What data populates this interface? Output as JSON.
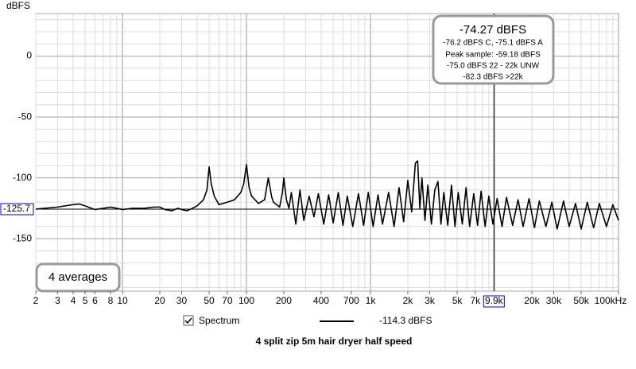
{
  "chart_data": {
    "type": "line",
    "title": "4 split zip 5m hair dryer half speed",
    "y_label": "dBFS",
    "xscale": "log",
    "xlim": [
      2,
      100000
    ],
    "ylim": [
      -193,
      35
    ],
    "xticks": [
      2,
      3,
      4,
      5,
      6,
      8,
      10,
      20,
      30,
      50,
      70,
      100,
      200,
      400,
      700,
      {
        "value": 1000,
        "label": "1k"
      },
      {
        "value": 2000,
        "label": "2k"
      },
      {
        "value": 3000,
        "label": "3k"
      },
      {
        "value": 5000,
        "label": "5k"
      },
      {
        "value": 7000,
        "label": "7k"
      },
      {
        "value": 20000,
        "label": "20k"
      },
      {
        "value": 30000,
        "label": "30k"
      },
      {
        "value": 50000,
        "label": "50k"
      },
      {
        "value": 100000,
        "label": "100kHz"
      }
    ],
    "yticks": [
      0,
      -50,
      -100,
      -150
    ],
    "x_grid": [
      2,
      3,
      4,
      5,
      6,
      7,
      8,
      9,
      10,
      20,
      30,
      40,
      50,
      60,
      70,
      80,
      90,
      100,
      200,
      300,
      400,
      500,
      600,
      700,
      800,
      900,
      1000,
      2000,
      3000,
      4000,
      5000,
      6000,
      7000,
      8000,
      9000,
      10000,
      20000,
      30000,
      40000,
      50000,
      60000,
      70000,
      80000,
      90000,
      100000
    ],
    "y_grid": [
      30,
      20,
      10,
      0,
      -10,
      -20,
      -30,
      -40,
      -50,
      -60,
      -70,
      -80,
      -90,
      -100,
      -110,
      -120,
      -130,
      -140,
      -150,
      -160,
      -170,
      -180,
      -190
    ],
    "grid": true,
    "cursor": {
      "x": {
        "value": 9900,
        "label": "9.9k"
      },
      "y": -125.7
    },
    "info": {
      "level": "-74.27 dBFS",
      "lines": [
        "-76.2 dBFS C, -75.1 dBFS A",
        "Peak sample: -59.18 dBFS",
        "-75.0 dBFS 22 - 22k UNW",
        "-82.3 dBFS >22k"
      ]
    },
    "averages": "4 averages",
    "legend_value": "-114.3 dBFS",
    "x": [
      2,
      3,
      4,
      4.5,
      5,
      6,
      7,
      8,
      9,
      10,
      12,
      15,
      18,
      20,
      22,
      25,
      28,
      30,
      33,
      35,
      40,
      45,
      48,
      50,
      52,
      55,
      60,
      70,
      80,
      90,
      95,
      100,
      105,
      110,
      125,
      140,
      150,
      160,
      165,
      185,
      195,
      200,
      210,
      220,
      230,
      250,
      270,
      290,
      320,
      350,
      380,
      420,
      460,
      500,
      550,
      600,
      650,
      720,
      800,
      880,
      960,
      1050,
      1150,
      1250,
      1400,
      1550,
      1700,
      1850,
      2000,
      2150,
      2300,
      2400,
      2500,
      2600,
      2750,
      2900,
      3100,
      3300,
      3500,
      3700,
      3900,
      4200,
      4500,
      4800,
      5100,
      5500,
      5900,
      6300,
      6800,
      7300,
      7800,
      8400,
      9000,
      9700,
      10500,
      11500,
      12500,
      14000,
      15500,
      17000,
      19000,
      21000,
      23000,
      26000,
      29000,
      32000,
      36000,
      40000,
      45000,
      50000,
      56000,
      63000,
      70000,
      80000,
      90000,
      100000
    ],
    "series": [
      {
        "name": "Spectrum",
        "color": "#000000",
        "values": [
          -125.7,
          -124,
          -122,
          -121.5,
          -123,
          -126,
          -125,
          -124,
          -125,
          -126,
          -125,
          -125,
          -124,
          -124,
          -126,
          -127,
          -125,
          -126,
          -127,
          -126,
          -123,
          -118,
          -110,
          -91,
          -105,
          -115,
          -122,
          -120,
          -118,
          -112,
          -105,
          -89,
          -108,
          -115,
          -121,
          -118,
          -100,
          -116,
          -120,
          -124,
          -112,
          -100,
          -118,
          -125,
          -112,
          -138,
          -110,
          -135,
          -115,
          -132,
          -113,
          -138,
          -114,
          -137,
          -112,
          -139,
          -115,
          -140,
          -113,
          -139,
          -112,
          -140,
          -114,
          -138,
          -112,
          -140,
          -108,
          -136,
          -102,
          -128,
          -88,
          -86,
          -125,
          -100,
          -135,
          -106,
          -138,
          -110,
          -103,
          -138,
          -112,
          -139,
          -106,
          -140,
          -112,
          -138,
          -108,
          -140,
          -113,
          -139,
          -111,
          -140,
          -115,
          -138,
          -117,
          -140,
          -116,
          -139,
          -118,
          -140,
          -117,
          -141,
          -119,
          -140,
          -120,
          -142,
          -119,
          -140,
          -121,
          -142,
          -120,
          -141,
          -121,
          -140,
          -122,
          -135
        ]
      }
    ]
  }
}
